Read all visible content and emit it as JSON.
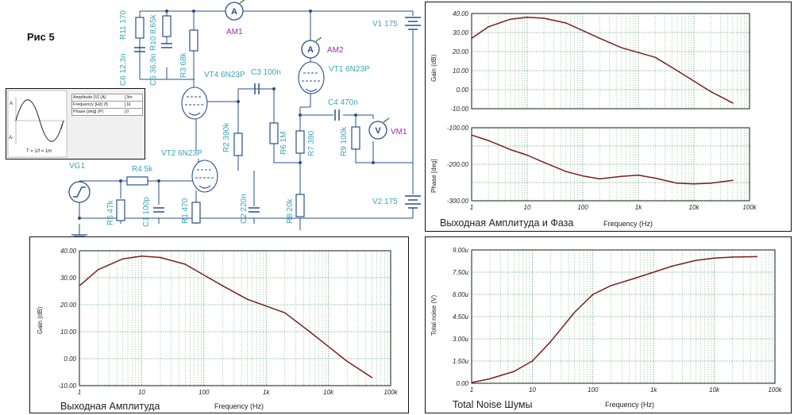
{
  "figure_label": "Рис 5",
  "components": {
    "r11": "R11 170",
    "r10": "R10 8,65k",
    "c6": "C6 12,3n",
    "c5": "C5 36,9n",
    "r3": "R3 68k",
    "vt4": "VT4 6N23P",
    "c3": "C3 100n",
    "am1": "AM1",
    "am2": "AM2",
    "vt1": "VT1 6N23P",
    "v1": "V1 175",
    "c4": "C4 470n",
    "vm1": "VM1",
    "r2": "R2 390k",
    "r6": "R6 1M",
    "r7": "R7 390",
    "r9": "R9 100k",
    "vt2": "VT2 6N23P",
    "vg1": "VG1",
    "r4": "R4 5k",
    "r5": "R5 47k",
    "c1": "C1 100p",
    "r1": "R1 470",
    "c2": "C2 220n",
    "r8": "R8 20k",
    "v2": "V2 175",
    "meter_a": "A",
    "meter_v": "V"
  },
  "generator_params": {
    "rows": [
      {
        "label": "Amplitude [V] (A)",
        "value": "3m"
      },
      {
        "label": "Frequency [Hz] (f)",
        "value": "1k"
      },
      {
        "label": "Phase [deg] (P)",
        "value": "0"
      }
    ],
    "wave_labels": {
      "a_plus": "A",
      "a_minus": "A-",
      "t_axis": "T",
      "period": "T = 1/f = 1m"
    }
  },
  "chart_data": [
    {
      "id": "amp_phase",
      "type": "line",
      "title": "Выходная Амплитуда и Фаза",
      "xlabel": "Frequency (Hz)",
      "xscale": "log",
      "x_tick_labels": [
        "1",
        "10",
        "100",
        "1k",
        "10k",
        "100k"
      ],
      "subplots": [
        {
          "ylabel": "Gain (dB)",
          "ylim": [
            -10,
            40
          ],
          "y_tick_labels": [
            "40.00",
            "30.00",
            "20.00",
            "10.00",
            "0.00",
            "-10.00"
          ],
          "series": [
            {
              "name": "Gain",
              "x": [
                1,
                2,
                5,
                10,
                20,
                50,
                100,
                200,
                500,
                1000,
                2000,
                5000,
                10000,
                20000,
                50000
              ],
              "values": [
                27,
                33,
                37,
                38,
                37.5,
                35,
                31,
                27,
                22,
                19.5,
                17,
                10,
                4.5,
                -1,
                -7
              ]
            }
          ]
        },
        {
          "ylabel": "Phase [deg]",
          "ylim": [
            -300,
            -100
          ],
          "y_tick_labels": [
            "-100.00",
            "-200.00",
            "-300.00"
          ],
          "series": [
            {
              "name": "Phase",
              "x": [
                1,
                2,
                5,
                10,
                20,
                50,
                100,
                200,
                500,
                1000,
                2000,
                5000,
                10000,
                20000,
                50000
              ],
              "values": [
                -120,
                -135,
                -160,
                -175,
                -195,
                -220,
                -232,
                -240,
                -233,
                -230,
                -238,
                -252,
                -254,
                -252,
                -244
              ]
            }
          ]
        }
      ]
    },
    {
      "id": "amplitude",
      "type": "line",
      "title": "Выходная Амплитуда",
      "xlabel": "Frequency (Hz)",
      "ylabel": "Gain (dB)",
      "xscale": "log",
      "ylim": [
        -10,
        40
      ],
      "x_tick_labels": [
        "1",
        "10",
        "100",
        "1k",
        "10k",
        "100k"
      ],
      "y_tick_labels": [
        "40.00",
        "30.00",
        "20.00",
        "10.00",
        "0.00",
        "-10.00"
      ],
      "series": [
        {
          "name": "Gain",
          "x": [
            1,
            2,
            5,
            10,
            20,
            50,
            100,
            200,
            500,
            1000,
            2000,
            5000,
            10000,
            20000,
            50000
          ],
          "values": [
            27,
            33,
            37,
            38,
            37.5,
            35,
            31,
            27,
            22,
            19.5,
            17,
            10,
            4.5,
            -1,
            -7
          ]
        }
      ]
    },
    {
      "id": "noise",
      "type": "line",
      "title": "Total Noise Шумы",
      "xlabel": "Frequency (Hz)",
      "ylabel": "Total noise (V)",
      "xscale": "log",
      "ylim": [
        0,
        9
      ],
      "x_tick_labels": [
        "1",
        "10",
        "100",
        "1k",
        "10k",
        "100k"
      ],
      "y_tick_labels": [
        "9.00u",
        "7.50u",
        "6.00u",
        "4.50u",
        "3.00u",
        "1.50u",
        "0.00"
      ],
      "series": [
        {
          "name": "Total noise",
          "x": [
            1,
            2,
            5,
            10,
            20,
            50,
            100,
            200,
            500,
            1000,
            2000,
            5000,
            10000,
            20000,
            50000
          ],
          "values": [
            0.05,
            0.3,
            0.8,
            1.5,
            2.8,
            4.8,
            6.0,
            6.6,
            7.1,
            7.5,
            7.9,
            8.3,
            8.45,
            8.52,
            8.55
          ]
        }
      ]
    }
  ]
}
